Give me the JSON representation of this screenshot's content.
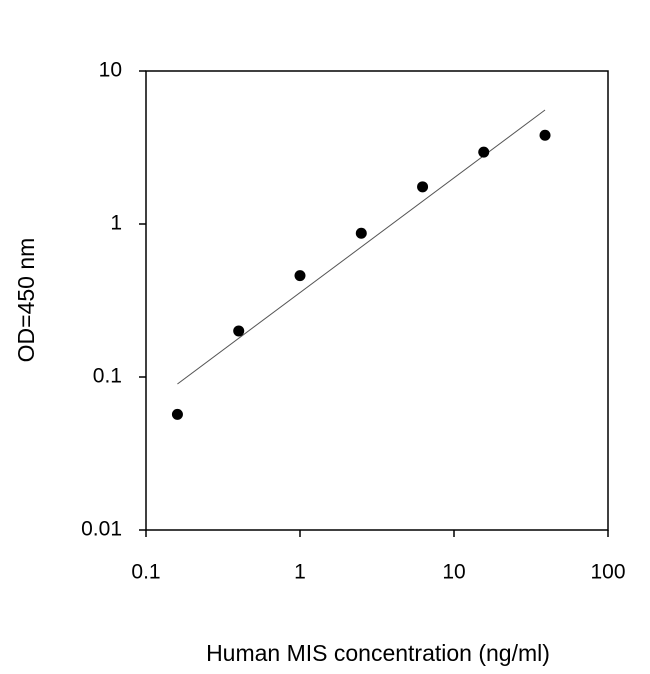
{
  "chart_data": {
    "type": "scatter",
    "xlabel": "Human MIS concentration (ng/ml)",
    "ylabel": "OD=450 nm",
    "x": [
      0.16,
      0.4,
      1,
      2.5,
      6.25,
      15.6,
      39
    ],
    "y": [
      0.057,
      0.2,
      0.46,
      0.87,
      1.75,
      2.95,
      3.8
    ],
    "color": "#000000",
    "fit": {
      "x": [
        0.16,
        39
      ],
      "y": [
        0.09,
        5.56
      ]
    },
    "xscale": "log",
    "yscale": "log",
    "xlim": [
      0.1,
      100
    ],
    "ylim": [
      0.01,
      10
    ],
    "xticks": [
      0.1,
      1,
      10,
      100
    ],
    "yticks": [
      0.01,
      0.1,
      1,
      10
    ]
  }
}
